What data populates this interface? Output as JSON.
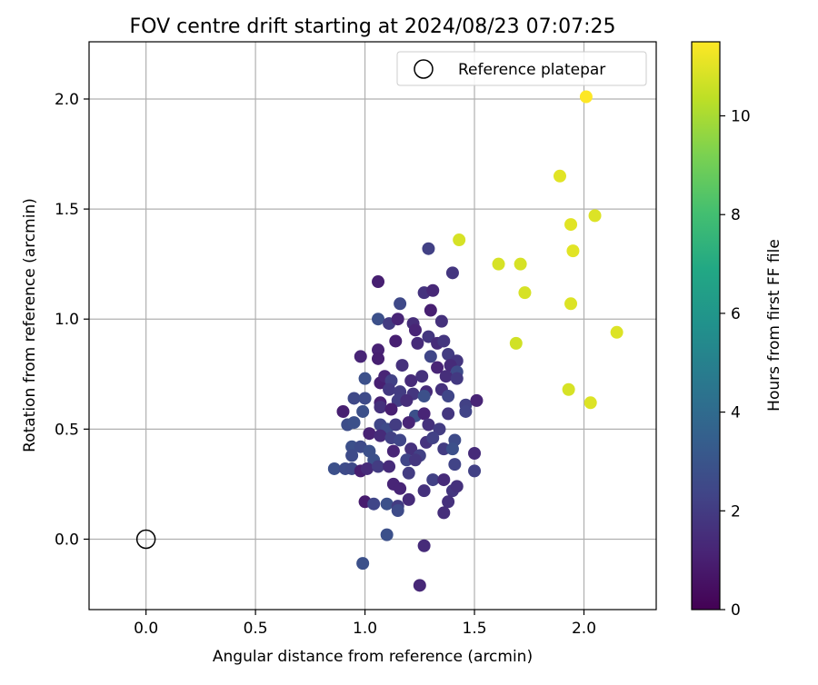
{
  "chart_data": {
    "type": "scatter",
    "title": "FOV centre drift starting at 2024/08/23 07:07:25",
    "xlabel": "Angular distance from reference (arcmin)",
    "ylabel": "Rotation from reference (arcmin)",
    "xlim": [
      -0.26,
      2.33
    ],
    "ylim": [
      -0.32,
      2.26
    ],
    "x_ticks": [
      0.0,
      0.5,
      1.0,
      1.5,
      2.0
    ],
    "y_ticks": [
      0.0,
      0.5,
      1.0,
      1.5,
      2.0
    ],
    "x_tick_labels": [
      "0.0",
      "0.5",
      "1.0",
      "1.5",
      "2.0"
    ],
    "y_tick_labels": [
      "0.0",
      "0.5",
      "1.0",
      "1.5",
      "2.0"
    ],
    "grid": true,
    "legend": {
      "placement": "top-right",
      "entries": [
        {
          "label": "Reference platepar",
          "marker": "open-circle",
          "color": "#000000"
        }
      ]
    },
    "reference_point": {
      "x": 0.0,
      "y": 0.0
    },
    "colorbar": {
      "label": "Hours from first FF file",
      "min": 0,
      "max": 11.5,
      "ticks": [
        0,
        2,
        4,
        6,
        8,
        10
      ],
      "tick_labels": [
        "0",
        "2",
        "4",
        "6",
        "8",
        "10"
      ],
      "colormap": "viridis"
    },
    "series": [
      {
        "points": [
          [
            2.01,
            2.01,
            11.5
          ],
          [
            1.89,
            1.65,
            11.0
          ],
          [
            2.05,
            1.47,
            10.9
          ],
          [
            1.94,
            1.43,
            11.0
          ],
          [
            1.95,
            1.31,
            11.0
          ],
          [
            1.43,
            1.36,
            10.8
          ],
          [
            1.61,
            1.25,
            10.8
          ],
          [
            1.71,
            1.25,
            10.8
          ],
          [
            1.73,
            1.12,
            10.8
          ],
          [
            1.94,
            1.07,
            10.9
          ],
          [
            2.15,
            0.94,
            10.9
          ],
          [
            1.69,
            0.89,
            10.7
          ],
          [
            1.93,
            0.68,
            10.8
          ],
          [
            2.03,
            0.62,
            10.9
          ],
          [
            1.29,
            1.32,
            2.2
          ],
          [
            1.4,
            1.21,
            1.8
          ],
          [
            1.06,
            1.17,
            1.0
          ],
          [
            1.27,
            1.12,
            1.7
          ],
          [
            1.31,
            1.13,
            1.3
          ],
          [
            1.16,
            1.07,
            2.5
          ],
          [
            1.06,
            1.0,
            2.8
          ],
          [
            1.11,
            0.98,
            2.0
          ],
          [
            1.15,
            1.0,
            1.2
          ],
          [
            1.22,
            0.98,
            1.5
          ],
          [
            1.3,
            1.04,
            1.0
          ],
          [
            1.35,
            0.99,
            1.6
          ],
          [
            1.23,
            0.95,
            1.2
          ],
          [
            1.29,
            0.92,
            1.8
          ],
          [
            1.14,
            0.9,
            1.0
          ],
          [
            1.24,
            0.89,
            1.4
          ],
          [
            1.33,
            0.89,
            1.4
          ],
          [
            1.36,
            0.9,
            1.8
          ],
          [
            1.06,
            0.86,
            1.1
          ],
          [
            0.98,
            0.83,
            1.2
          ],
          [
            1.06,
            0.82,
            1.0
          ],
          [
            1.3,
            0.83,
            2.4
          ],
          [
            1.38,
            0.84,
            2.0
          ],
          [
            1.42,
            0.81,
            1.8
          ],
          [
            1.17,
            0.79,
            1.6
          ],
          [
            1.33,
            0.78,
            1.2
          ],
          [
            1.39,
            0.79,
            1.4
          ],
          [
            1.42,
            0.76,
            2.6
          ],
          [
            1.0,
            0.73,
            2.8
          ],
          [
            1.07,
            0.71,
            1.0
          ],
          [
            1.09,
            0.74,
            1.2
          ],
          [
            1.12,
            0.72,
            2.2
          ],
          [
            1.21,
            0.72,
            1.4
          ],
          [
            1.26,
            0.74,
            1.6
          ],
          [
            1.37,
            0.74,
            1.5
          ],
          [
            1.42,
            0.73,
            1.9
          ],
          [
            1.11,
            0.68,
            1.9
          ],
          [
            1.16,
            0.67,
            2.0
          ],
          [
            1.22,
            0.66,
            1.8
          ],
          [
            1.28,
            0.67,
            1.4
          ],
          [
            1.35,
            0.68,
            1.6
          ],
          [
            0.95,
            0.64,
            2.5
          ],
          [
            1.0,
            0.64,
            2.6
          ],
          [
            1.07,
            0.62,
            1.1
          ],
          [
            1.15,
            0.63,
            2.1
          ],
          [
            1.19,
            0.63,
            1.5
          ],
          [
            1.27,
            0.65,
            2.8
          ],
          [
            1.38,
            0.65,
            2.4
          ],
          [
            1.46,
            0.61,
            2.2
          ],
          [
            1.51,
            0.63,
            1.2
          ],
          [
            0.9,
            0.58,
            1.0
          ],
          [
            0.99,
            0.58,
            2.8
          ],
          [
            1.07,
            0.6,
            1.6
          ],
          [
            1.12,
            0.59,
            1.0
          ],
          [
            1.23,
            0.56,
            2.8
          ],
          [
            1.27,
            0.57,
            1.2
          ],
          [
            1.38,
            0.57,
            1.8
          ],
          [
            1.46,
            0.58,
            2.3
          ],
          [
            0.92,
            0.52,
            2.7
          ],
          [
            0.95,
            0.53,
            2.8
          ],
          [
            1.07,
            0.52,
            2.4
          ],
          [
            1.1,
            0.5,
            2.6
          ],
          [
            1.14,
            0.52,
            2.0
          ],
          [
            1.2,
            0.53,
            1.2
          ],
          [
            1.29,
            0.52,
            1.6
          ],
          [
            1.34,
            0.5,
            2.0
          ],
          [
            1.02,
            0.48,
            1.1
          ],
          [
            1.07,
            0.47,
            1.4
          ],
          [
            1.12,
            0.46,
            2.2
          ],
          [
            1.16,
            0.45,
            2.4
          ],
          [
            1.28,
            0.44,
            1.7
          ],
          [
            1.31,
            0.46,
            2.2
          ],
          [
            1.36,
            0.41,
            2.0
          ],
          [
            1.41,
            0.45,
            2.6
          ],
          [
            0.94,
            0.42,
            2.8
          ],
          [
            0.98,
            0.42,
            2.6
          ],
          [
            1.02,
            0.4,
            2.8
          ],
          [
            1.13,
            0.4,
            1.2
          ],
          [
            1.21,
            0.41,
            1.6
          ],
          [
            1.25,
            0.38,
            2.2
          ],
          [
            1.4,
            0.41,
            2.8
          ],
          [
            1.5,
            0.39,
            1.4
          ],
          [
            0.94,
            0.38,
            2.6
          ],
          [
            1.04,
            0.36,
            2.8
          ],
          [
            1.19,
            0.36,
            2.4
          ],
          [
            1.23,
            0.36,
            1.8
          ],
          [
            1.41,
            0.34,
            2.3
          ],
          [
            0.86,
            0.32,
            2.8
          ],
          [
            0.91,
            0.32,
            2.6
          ],
          [
            0.94,
            0.32,
            2.5
          ],
          [
            0.98,
            0.31,
            1.0
          ],
          [
            1.01,
            0.32,
            1.4
          ],
          [
            1.06,
            0.33,
            2.0
          ],
          [
            1.11,
            0.33,
            1.4
          ],
          [
            1.2,
            0.3,
            2.0
          ],
          [
            1.31,
            0.27,
            2.2
          ],
          [
            1.36,
            0.27,
            1.4
          ],
          [
            1.5,
            0.31,
            2.2
          ],
          [
            1.13,
            0.25,
            1.2
          ],
          [
            1.16,
            0.23,
            1.2
          ],
          [
            1.27,
            0.22,
            1.6
          ],
          [
            1.4,
            0.22,
            1.8
          ],
          [
            1.42,
            0.24,
            1.6
          ],
          [
            1.0,
            0.17,
            0.9
          ],
          [
            1.04,
            0.16,
            2.4
          ],
          [
            1.1,
            0.16,
            2.8
          ],
          [
            1.15,
            0.15,
            2.0
          ],
          [
            1.2,
            0.18,
            1.4
          ],
          [
            1.38,
            0.17,
            1.6
          ],
          [
            1.15,
            0.13,
            2.6
          ],
          [
            1.36,
            0.12,
            1.5
          ],
          [
            1.1,
            0.02,
            2.8
          ],
          [
            1.27,
            -0.03,
            1.4
          ],
          [
            0.99,
            -0.11,
            2.8
          ],
          [
            1.25,
            -0.21,
            1.3
          ]
        ]
      }
    ]
  }
}
